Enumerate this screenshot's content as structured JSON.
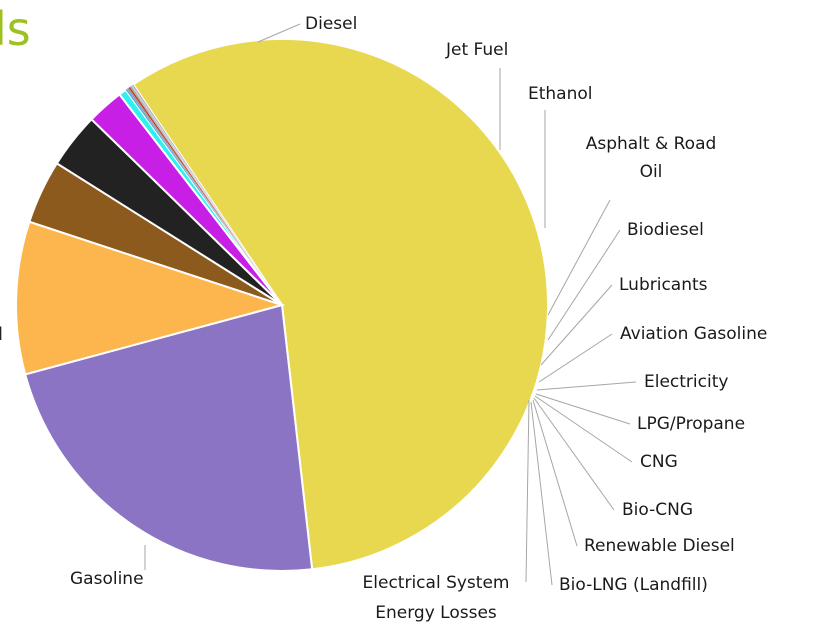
{
  "page": {
    "title_fragment": "ls",
    "left_fragment": "l"
  },
  "chart_data": {
    "type": "pie",
    "title": "",
    "unit": "%",
    "categories": [
      "Gasoline",
      "Diesel",
      "Jet Fuel",
      "Ethanol",
      "Asphalt & Road Oil",
      "Biodiesel",
      "Lubricants",
      "Aviation Gasoline",
      "Electricity",
      "LPG/Propane",
      "CNG",
      "Bio-CNG",
      "Renewable Diesel",
      "Bio-LNG (Landfill)",
      "Electrical System Energy Losses"
    ],
    "values": [
      56.6,
      22.2,
      9.1,
      3.8,
      3.3,
      2.2,
      0.45,
      0.12,
      0.08,
      0.12,
      0.04,
      0.04,
      0.04,
      0.03,
      0.08
    ],
    "colors": [
      "#e8d84f",
      "#8b74c4",
      "#fdb64d",
      "#8b5a1c",
      "#222222",
      "#c81fe6",
      "#2ff0ee",
      "#5aa7e0",
      "#7b7b7b",
      "#c23b22",
      "#3a7d44",
      "#1f5fbf",
      "#d98c5f",
      "#6a5acd",
      "#aaaaaa"
    ],
    "legend": "none",
    "start_angle_deg": -124
  }
}
